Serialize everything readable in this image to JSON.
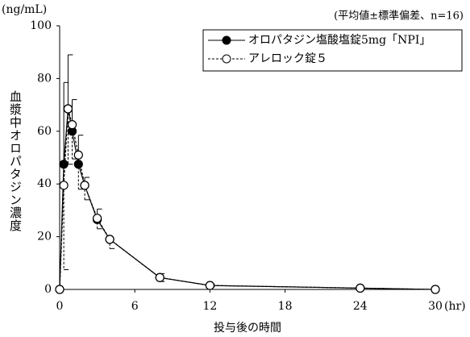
{
  "chart_data": {
    "type": "line",
    "y_unit": "(ng/mL)",
    "ylabel": "血漿中オロパタジン濃度",
    "xlabel": "投与後の時間",
    "x_unit": "(hr)",
    "annotation": "(平均値±標準偏差、n=16)",
    "x": [
      0,
      0.33,
      0.67,
      1,
      1.5,
      2,
      3,
      4,
      8,
      12,
      24,
      30
    ],
    "series": [
      {
        "name": "オロパタジン塩酸塩錠5mg「NPI」",
        "color": "#000000",
        "marker": "filled",
        "dash": false,
        "error_side": "upper",
        "values": [
          0,
          47.5,
          68.5,
          60,
          47.5,
          39.5,
          26.5,
          19,
          4.5,
          1.5,
          0.5,
          0
        ],
        "errors": [
          null,
          31,
          20.5,
          12,
          11,
          3,
          4,
          null,
          1.5,
          0.5,
          null,
          null
        ]
      },
      {
        "name": "アレロック錠５",
        "color": "#000000",
        "marker": "open",
        "dash": true,
        "error_side": "lower",
        "values": [
          0,
          39.5,
          68.5,
          62.5,
          51,
          39.5,
          27,
          19,
          4.5,
          1.5,
          0.5,
          0
        ],
        "errors": [
          null,
          32,
          21,
          13,
          13,
          5.5,
          4,
          3.5,
          1.5,
          0.5,
          null,
          null
        ]
      }
    ],
    "xlim": [
      0,
      30
    ],
    "xticks": [
      0,
      6,
      12,
      18,
      24,
      30
    ],
    "ylim": [
      0,
      100
    ],
    "yticks": [
      0,
      20,
      40,
      60,
      80,
      100
    ],
    "grid": false,
    "legend": "upper right"
  }
}
